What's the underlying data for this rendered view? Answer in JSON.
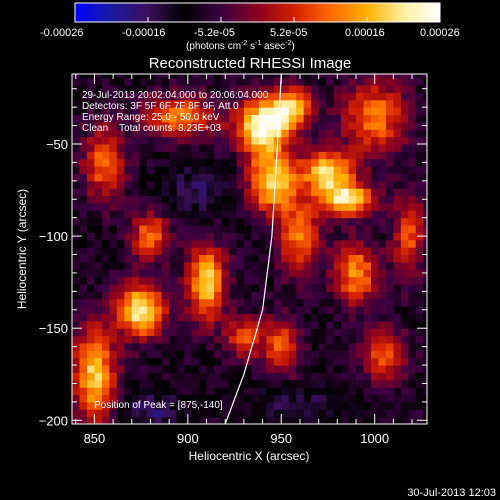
{
  "colorbar": {
    "ticks": [
      "-0.00026",
      "-0.00016",
      "-5.2e-05",
      "5.2e-05",
      "0.00016",
      "0.00026"
    ],
    "unit_text": "(photons cm",
    "unit_sup1": "-2",
    "unit_mid": " s",
    "unit_sup2": "-1",
    "unit_end": " asec",
    "unit_sup3": "-2",
    "unit_close": ")",
    "range": [
      -0.00026,
      0.00026
    ],
    "colors": [
      "#0000ff",
      "#1a1aa0",
      "#3a0f5a",
      "#000000",
      "#3a0040",
      "#8a0020",
      "#d22000",
      "#ff6a00",
      "#ffb000",
      "#fff0a0",
      "#ffffff"
    ]
  },
  "title": "Reconstructed RHESSI Image",
  "annotations": {
    "line1": "29-Jul-2013 20:02:04.000 to 20:06:04.000",
    "line2": "Detectors: 3F 5F 6F 7F 8F 9F, Att 0",
    "line3": "Energy Range: 25.0 - 50.0 keV",
    "line4": "Clean    Total counts: 8.23E+03",
    "peak": "Position of Peak = [875,-140]"
  },
  "footer_timestamp": "30-Jul-2013 12:03",
  "chart_data": {
    "type": "heatmap",
    "title": "Reconstructed RHESSI Image",
    "xlabel": "Heliocentric X (arcsec)",
    "ylabel": "Heliocentric Y (arcsec)",
    "xlim": [
      838,
      1028
    ],
    "ylim": [
      -202,
      -12
    ],
    "xticks": [
      850,
      900,
      950,
      1000
    ],
    "yticks": [
      -50,
      -100,
      -150,
      -200
    ],
    "grid": false,
    "limb_curve": [
      [
        920,
        -202
      ],
      [
        930,
        -175
      ],
      [
        940,
        -140
      ],
      [
        945,
        -100
      ],
      [
        948,
        -50
      ],
      [
        950,
        -12
      ]
    ],
    "peak": [
      875,
      -140
    ],
    "blobs": [
      {
        "x": 940,
        "y": -40,
        "sx": 10,
        "sy": 10,
        "a": 1.0
      },
      {
        "x": 945,
        "y": -70,
        "sx": 9,
        "sy": 12,
        "a": 0.85
      },
      {
        "x": 955,
        "y": -30,
        "sx": 8,
        "sy": 8,
        "a": 0.75
      },
      {
        "x": 975,
        "y": -65,
        "sx": 10,
        "sy": 8,
        "a": 0.85
      },
      {
        "x": 985,
        "y": -80,
        "sx": 10,
        "sy": 6,
        "a": 0.9
      },
      {
        "x": 1000,
        "y": -35,
        "sx": 12,
        "sy": 14,
        "a": 0.6
      },
      {
        "x": 960,
        "y": -100,
        "sx": 8,
        "sy": 14,
        "a": 0.6
      },
      {
        "x": 990,
        "y": -120,
        "sx": 8,
        "sy": 12,
        "a": 0.65
      },
      {
        "x": 1005,
        "y": -165,
        "sx": 8,
        "sy": 10,
        "a": 0.55
      },
      {
        "x": 875,
        "y": -140,
        "sx": 9,
        "sy": 10,
        "a": 0.95
      },
      {
        "x": 910,
        "y": -125,
        "sx": 7,
        "sy": 14,
        "a": 0.85
      },
      {
        "x": 880,
        "y": -100,
        "sx": 7,
        "sy": 9,
        "a": 0.6
      },
      {
        "x": 850,
        "y": -175,
        "sx": 8,
        "sy": 18,
        "a": 0.8
      },
      {
        "x": 855,
        "y": -60,
        "sx": 8,
        "sy": 14,
        "a": 0.55
      },
      {
        "x": 895,
        "y": -35,
        "sx": 14,
        "sy": 8,
        "a": 0.6
      },
      {
        "x": 930,
        "y": -155,
        "sx": 7,
        "sy": 8,
        "a": 0.5
      },
      {
        "x": 950,
        "y": -160,
        "sx": 7,
        "sy": 12,
        "a": 0.5
      },
      {
        "x": 1018,
        "y": -100,
        "sx": 6,
        "sy": 16,
        "a": 0.5
      }
    ],
    "dips": [
      {
        "x": 905,
        "y": -75,
        "sx": 12,
        "sy": 10,
        "a": 0.25
      },
      {
        "x": 880,
        "y": -195,
        "sx": 12,
        "sy": 8,
        "a": 0.25
      },
      {
        "x": 960,
        "y": -190,
        "sx": 18,
        "sy": 8,
        "a": 0.2
      }
    ]
  }
}
